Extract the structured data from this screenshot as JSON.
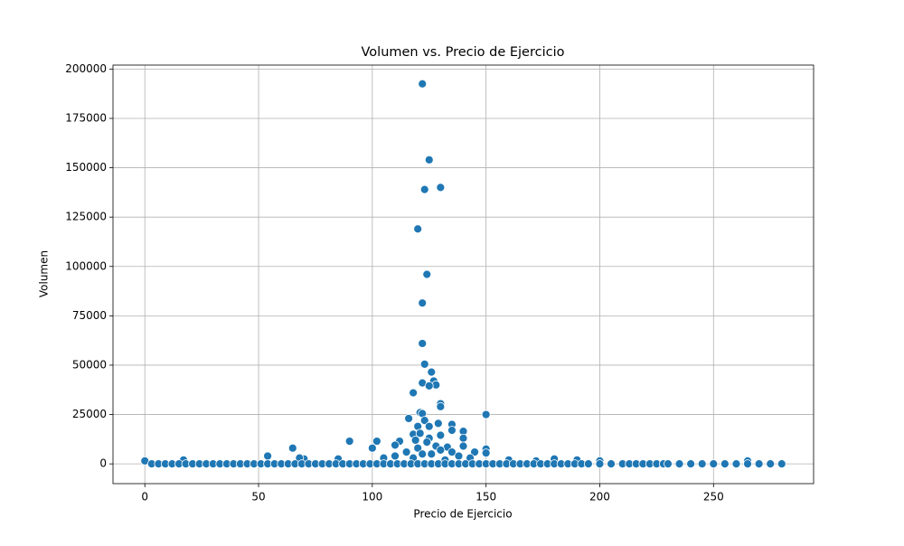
{
  "chart_data": {
    "type": "scatter",
    "title": "Volumen vs. Precio de Ejercicio",
    "x_label": "Precio de Ejercicio",
    "y_label": "Volumen",
    "xlim": [
      -14,
      294
    ],
    "ylim": [
      -10000,
      202000
    ],
    "xticks": [
      0,
      50,
      100,
      150,
      200,
      250
    ],
    "yticks": [
      0,
      25000,
      50000,
      75000,
      100000,
      125000,
      150000,
      175000,
      200000
    ],
    "grid": true,
    "x": [
      122,
      125,
      130,
      123,
      120,
      124,
      122,
      122,
      123,
      126,
      127,
      122,
      128,
      125,
      118,
      130,
      130,
      121,
      122,
      150,
      116,
      123,
      129,
      135,
      125,
      120,
      140,
      135,
      118,
      121,
      130,
      140,
      125,
      112,
      102,
      90,
      119,
      124,
      128,
      133,
      140,
      145,
      110,
      100,
      65,
      54,
      150,
      150,
      135,
      115,
      105,
      120,
      122,
      126,
      130,
      138,
      70,
      85,
      17,
      0,
      160,
      180,
      190,
      200,
      265,
      172,
      68,
      110,
      118,
      132,
      143,
      3,
      6,
      9,
      12,
      15,
      18,
      21,
      24,
      27,
      30,
      33,
      36,
      39,
      42,
      45,
      48,
      51,
      54,
      57,
      60,
      63,
      66,
      69,
      72,
      75,
      78,
      81,
      84,
      87,
      90,
      93,
      96,
      99,
      102,
      105,
      108,
      111,
      114,
      117,
      120,
      123,
      126,
      129,
      132,
      135,
      138,
      141,
      144,
      147,
      150,
      153,
      156,
      159,
      162,
      165,
      168,
      171,
      174,
      177,
      180,
      183,
      186,
      189,
      192,
      195,
      200,
      205,
      210,
      213,
      216,
      219,
      222,
      225,
      228,
      230,
      235,
      240,
      245,
      250,
      255,
      260,
      265,
      270,
      275,
      280
    ],
    "series": [
      {
        "name": "Volumen",
        "color": "#1f77b4",
        "values": [
          192500,
          154000,
          140000,
          139000,
          119000,
          96000,
          81500,
          61000,
          50500,
          46500,
          42000,
          41000,
          40000,
          39500,
          36000,
          30500,
          29000,
          26000,
          25500,
          25000,
          23000,
          22000,
          20500,
          20000,
          19000,
          19000,
          16500,
          17000,
          15000,
          15500,
          14500,
          13000,
          13000,
          11500,
          11500,
          11500,
          12000,
          11000,
          9000,
          8500,
          9000,
          6000,
          9500,
          8000,
          8000,
          4000,
          7500,
          5500,
          6000,
          6000,
          3000,
          8000,
          5000,
          5000,
          7000,
          4000,
          2500,
          2500,
          2000,
          1500,
          2000,
          2500,
          2000,
          1500,
          1500,
          1500,
          3000,
          4000,
          3000,
          2000,
          3000,
          0,
          0,
          0,
          0,
          0,
          0,
          0,
          0,
          0,
          0,
          0,
          0,
          0,
          0,
          0,
          0,
          0,
          0,
          0,
          0,
          0,
          0,
          0,
          0,
          0,
          0,
          0,
          0,
          0,
          0,
          0,
          0,
          0,
          0,
          0,
          0,
          0,
          0,
          0,
          0,
          0,
          0,
          0,
          0,
          0,
          0,
          0,
          0,
          0,
          0,
          0,
          0,
          0,
          0,
          0,
          0,
          0,
          0,
          0,
          0,
          0,
          0,
          0,
          0,
          0,
          0,
          0,
          0,
          0,
          0,
          0,
          0,
          0,
          0,
          0,
          0,
          0,
          0,
          0,
          0,
          0,
          0,
          0,
          0,
          0
        ]
      }
    ]
  }
}
